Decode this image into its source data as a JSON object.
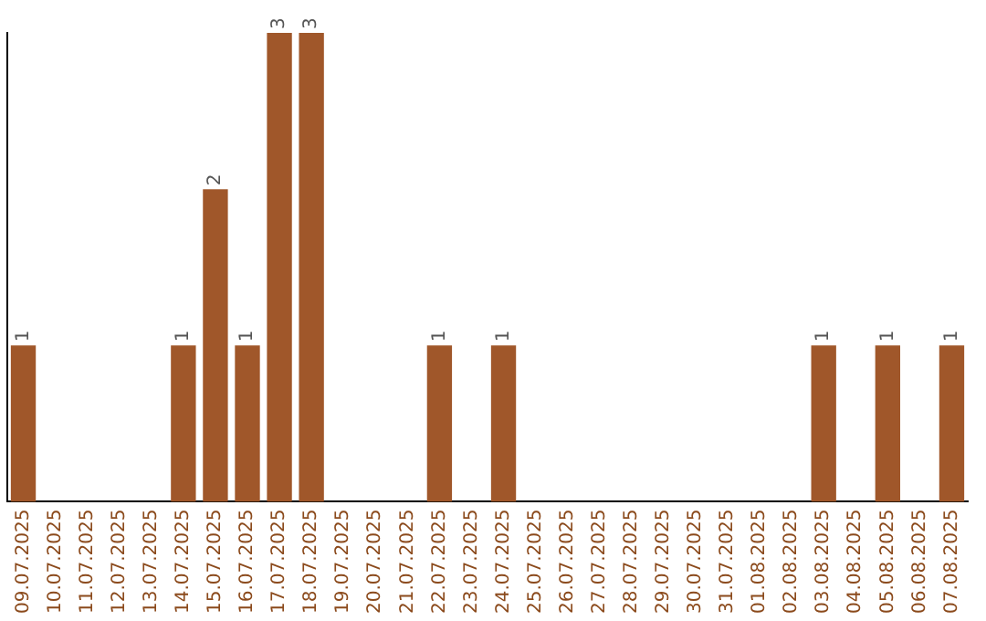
{
  "chart_data": {
    "type": "bar",
    "categories": [
      "09.07.2025",
      "10.07.2025",
      "11.07.2025",
      "12.07.2025",
      "13.07.2025",
      "14.07.2025",
      "15.07.2025",
      "16.07.2025",
      "17.07.2025",
      "18.07.2025",
      "19.07.2025",
      "20.07.2025",
      "21.07.2025",
      "22.07.2025",
      "23.07.2025",
      "24.07.2025",
      "25.07.2025",
      "26.07.2025",
      "27.07.2025",
      "28.07.2025",
      "29.07.2025",
      "30.07.2025",
      "31.07.2025",
      "01.08.2025",
      "02.08.2025",
      "03.08.2025",
      "04.08.2025",
      "05.08.2025",
      "06.08.2025",
      "07.08.2025"
    ],
    "values": [
      1,
      0,
      0,
      0,
      0,
      1,
      2,
      1,
      3,
      3,
      0,
      0,
      0,
      1,
      0,
      1,
      0,
      0,
      0,
      0,
      0,
      0,
      0,
      0,
      0,
      1,
      0,
      1,
      0,
      1
    ],
    "value_labels": [
      "1",
      null,
      null,
      null,
      null,
      "1",
      "2",
      "1",
      "3",
      "3",
      null,
      null,
      null,
      "1",
      null,
      "1",
      null,
      null,
      null,
      null,
      null,
      null,
      null,
      null,
      null,
      "1",
      null,
      "1",
      null,
      "1"
    ],
    "color": "#a0572a",
    "tick_labels": "x",
    "grid": false,
    "legend": false
  }
}
